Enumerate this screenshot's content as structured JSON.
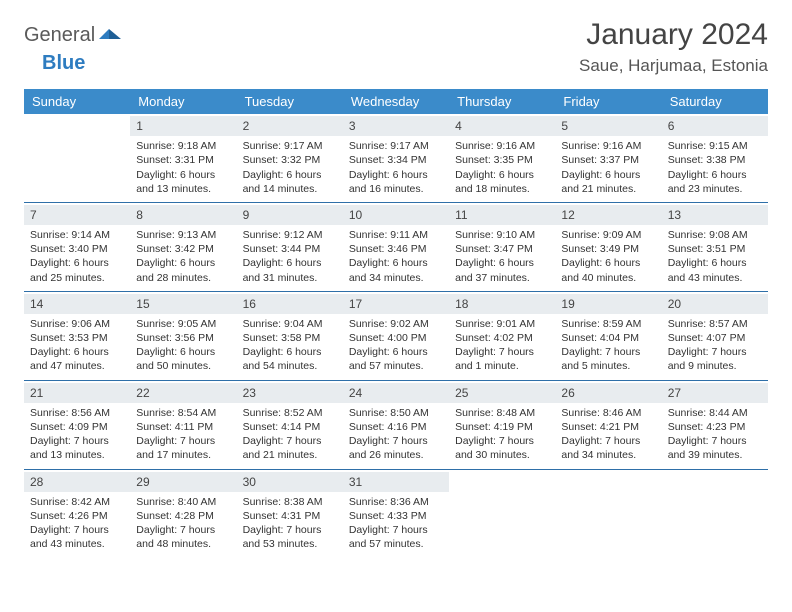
{
  "logo": {
    "textA": "General",
    "textB": "Blue"
  },
  "title": "January 2024",
  "location": "Saue, Harjumaa, Estonia",
  "colors": {
    "header_bg": "#3b8bca",
    "header_text": "#ffffff",
    "daynum_bg": "#e8ecef",
    "rule": "#2e6fa8",
    "body_text": "#333333",
    "logo_gray": "#5a5a5a",
    "logo_blue": "#2e7cc0"
  },
  "day_headers": [
    "Sunday",
    "Monday",
    "Tuesday",
    "Wednesday",
    "Thursday",
    "Friday",
    "Saturday"
  ],
  "weeks": [
    [
      {
        "empty": true
      },
      {
        "n": "1",
        "sr": "Sunrise: 9:18 AM",
        "ss": "Sunset: 3:31 PM",
        "d1": "Daylight: 6 hours",
        "d2": "and 13 minutes."
      },
      {
        "n": "2",
        "sr": "Sunrise: 9:17 AM",
        "ss": "Sunset: 3:32 PM",
        "d1": "Daylight: 6 hours",
        "d2": "and 14 minutes."
      },
      {
        "n": "3",
        "sr": "Sunrise: 9:17 AM",
        "ss": "Sunset: 3:34 PM",
        "d1": "Daylight: 6 hours",
        "d2": "and 16 minutes."
      },
      {
        "n": "4",
        "sr": "Sunrise: 9:16 AM",
        "ss": "Sunset: 3:35 PM",
        "d1": "Daylight: 6 hours",
        "d2": "and 18 minutes."
      },
      {
        "n": "5",
        "sr": "Sunrise: 9:16 AM",
        "ss": "Sunset: 3:37 PM",
        "d1": "Daylight: 6 hours",
        "d2": "and 21 minutes."
      },
      {
        "n": "6",
        "sr": "Sunrise: 9:15 AM",
        "ss": "Sunset: 3:38 PM",
        "d1": "Daylight: 6 hours",
        "d2": "and 23 minutes."
      }
    ],
    [
      {
        "n": "7",
        "sr": "Sunrise: 9:14 AM",
        "ss": "Sunset: 3:40 PM",
        "d1": "Daylight: 6 hours",
        "d2": "and 25 minutes."
      },
      {
        "n": "8",
        "sr": "Sunrise: 9:13 AM",
        "ss": "Sunset: 3:42 PM",
        "d1": "Daylight: 6 hours",
        "d2": "and 28 minutes."
      },
      {
        "n": "9",
        "sr": "Sunrise: 9:12 AM",
        "ss": "Sunset: 3:44 PM",
        "d1": "Daylight: 6 hours",
        "d2": "and 31 minutes."
      },
      {
        "n": "10",
        "sr": "Sunrise: 9:11 AM",
        "ss": "Sunset: 3:46 PM",
        "d1": "Daylight: 6 hours",
        "d2": "and 34 minutes."
      },
      {
        "n": "11",
        "sr": "Sunrise: 9:10 AM",
        "ss": "Sunset: 3:47 PM",
        "d1": "Daylight: 6 hours",
        "d2": "and 37 minutes."
      },
      {
        "n": "12",
        "sr": "Sunrise: 9:09 AM",
        "ss": "Sunset: 3:49 PM",
        "d1": "Daylight: 6 hours",
        "d2": "and 40 minutes."
      },
      {
        "n": "13",
        "sr": "Sunrise: 9:08 AM",
        "ss": "Sunset: 3:51 PM",
        "d1": "Daylight: 6 hours",
        "d2": "and 43 minutes."
      }
    ],
    [
      {
        "n": "14",
        "sr": "Sunrise: 9:06 AM",
        "ss": "Sunset: 3:53 PM",
        "d1": "Daylight: 6 hours",
        "d2": "and 47 minutes."
      },
      {
        "n": "15",
        "sr": "Sunrise: 9:05 AM",
        "ss": "Sunset: 3:56 PM",
        "d1": "Daylight: 6 hours",
        "d2": "and 50 minutes."
      },
      {
        "n": "16",
        "sr": "Sunrise: 9:04 AM",
        "ss": "Sunset: 3:58 PM",
        "d1": "Daylight: 6 hours",
        "d2": "and 54 minutes."
      },
      {
        "n": "17",
        "sr": "Sunrise: 9:02 AM",
        "ss": "Sunset: 4:00 PM",
        "d1": "Daylight: 6 hours",
        "d2": "and 57 minutes."
      },
      {
        "n": "18",
        "sr": "Sunrise: 9:01 AM",
        "ss": "Sunset: 4:02 PM",
        "d1": "Daylight: 7 hours",
        "d2": "and 1 minute."
      },
      {
        "n": "19",
        "sr": "Sunrise: 8:59 AM",
        "ss": "Sunset: 4:04 PM",
        "d1": "Daylight: 7 hours",
        "d2": "and 5 minutes."
      },
      {
        "n": "20",
        "sr": "Sunrise: 8:57 AM",
        "ss": "Sunset: 4:07 PM",
        "d1": "Daylight: 7 hours",
        "d2": "and 9 minutes."
      }
    ],
    [
      {
        "n": "21",
        "sr": "Sunrise: 8:56 AM",
        "ss": "Sunset: 4:09 PM",
        "d1": "Daylight: 7 hours",
        "d2": "and 13 minutes."
      },
      {
        "n": "22",
        "sr": "Sunrise: 8:54 AM",
        "ss": "Sunset: 4:11 PM",
        "d1": "Daylight: 7 hours",
        "d2": "and 17 minutes."
      },
      {
        "n": "23",
        "sr": "Sunrise: 8:52 AM",
        "ss": "Sunset: 4:14 PM",
        "d1": "Daylight: 7 hours",
        "d2": "and 21 minutes."
      },
      {
        "n": "24",
        "sr": "Sunrise: 8:50 AM",
        "ss": "Sunset: 4:16 PM",
        "d1": "Daylight: 7 hours",
        "d2": "and 26 minutes."
      },
      {
        "n": "25",
        "sr": "Sunrise: 8:48 AM",
        "ss": "Sunset: 4:19 PM",
        "d1": "Daylight: 7 hours",
        "d2": "and 30 minutes."
      },
      {
        "n": "26",
        "sr": "Sunrise: 8:46 AM",
        "ss": "Sunset: 4:21 PM",
        "d1": "Daylight: 7 hours",
        "d2": "and 34 minutes."
      },
      {
        "n": "27",
        "sr": "Sunrise: 8:44 AM",
        "ss": "Sunset: 4:23 PM",
        "d1": "Daylight: 7 hours",
        "d2": "and 39 minutes."
      }
    ],
    [
      {
        "n": "28",
        "sr": "Sunrise: 8:42 AM",
        "ss": "Sunset: 4:26 PM",
        "d1": "Daylight: 7 hours",
        "d2": "and 43 minutes."
      },
      {
        "n": "29",
        "sr": "Sunrise: 8:40 AM",
        "ss": "Sunset: 4:28 PM",
        "d1": "Daylight: 7 hours",
        "d2": "and 48 minutes."
      },
      {
        "n": "30",
        "sr": "Sunrise: 8:38 AM",
        "ss": "Sunset: 4:31 PM",
        "d1": "Daylight: 7 hours",
        "d2": "and 53 minutes."
      },
      {
        "n": "31",
        "sr": "Sunrise: 8:36 AM",
        "ss": "Sunset: 4:33 PM",
        "d1": "Daylight: 7 hours",
        "d2": "and 57 minutes."
      },
      {
        "empty": true
      },
      {
        "empty": true
      },
      {
        "empty": true
      }
    ]
  ]
}
